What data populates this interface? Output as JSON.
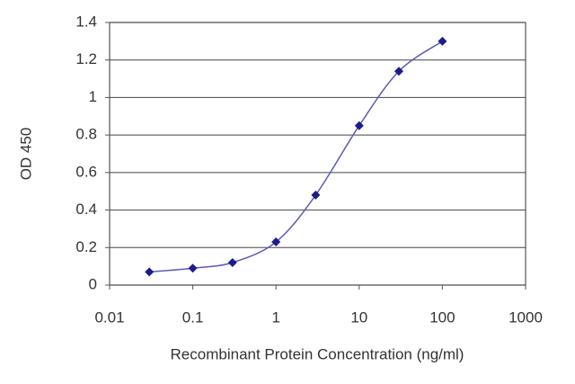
{
  "chart_data": {
    "type": "line",
    "x_scale": "log",
    "x": [
      0.03,
      0.1,
      0.3,
      1,
      3,
      10,
      30,
      100
    ],
    "values": [
      0.07,
      0.09,
      0.12,
      0.23,
      0.48,
      0.85,
      1.14,
      1.3
    ],
    "color": "#1c1c8a",
    "line_color": "#5b5bb8",
    "marker": "diamond",
    "xlabel": "Recombinant Protein Concentration (ng/ml)",
    "ylabel": "OD 450",
    "xlim": [
      0.01,
      1000
    ],
    "xticks": [
      0.01,
      0.1,
      1,
      10,
      100,
      1000
    ],
    "ylim": [
      0,
      1.4
    ],
    "yticks": [
      0,
      0.2,
      0.4,
      0.6,
      0.8,
      1,
      1.2,
      1.4
    ],
    "grid": true
  }
}
